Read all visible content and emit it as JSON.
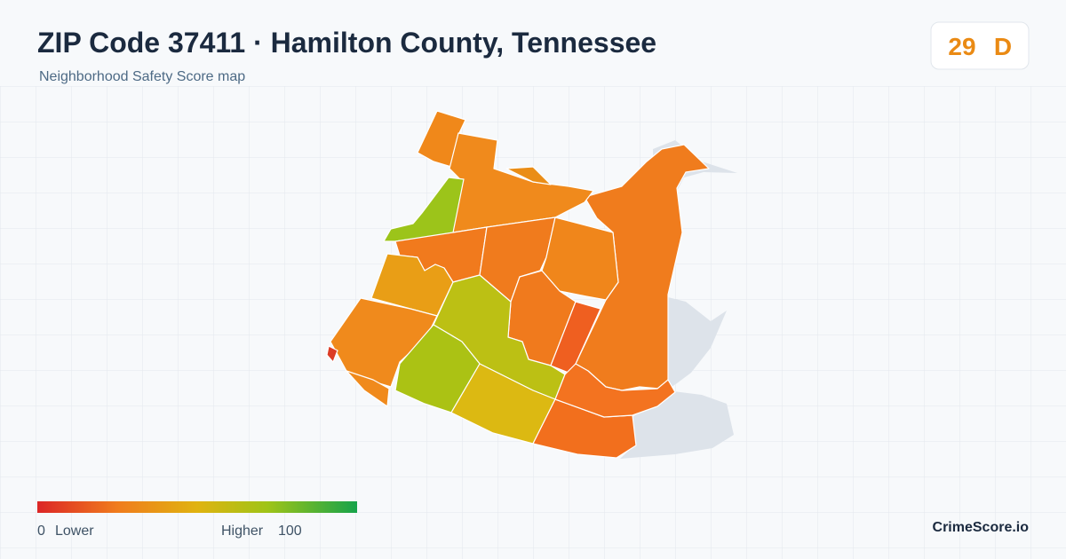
{
  "header": {
    "title": "ZIP Code 37411 · Hamilton County, Tennessee",
    "subtitle": "Neighborhood Safety Score map"
  },
  "score": {
    "value": 29,
    "grade": "D"
  },
  "legend": {
    "min": 0,
    "min_label": "Lower",
    "max_label": "Higher",
    "max": 100
  },
  "brand": "CrimeScore.io"
}
